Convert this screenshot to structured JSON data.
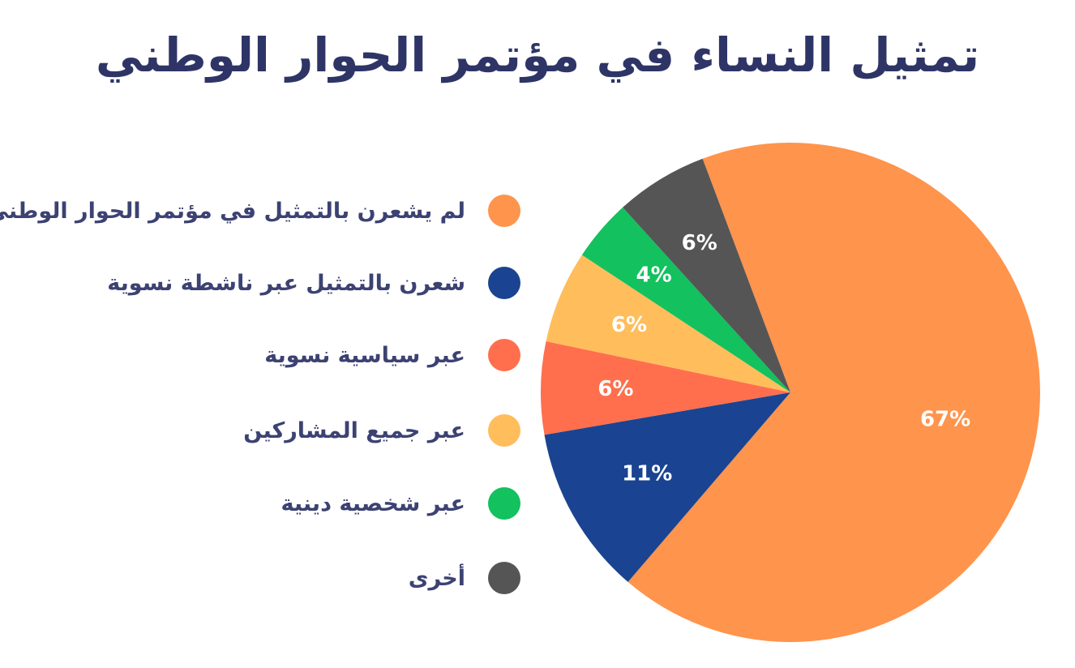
{
  "chart_data": {
    "type": "pie",
    "title": "تمثيل النساء في مؤتمر الحوار الوطني",
    "categories": [
      "لم يشعرن بالتمثيل في مؤتمر الحوار الوطني",
      "شعرن بالتمثيل عبر ناشطة نسوية",
      "عبر سياسية نسوية",
      "عبر جميع المشاركين",
      "عبر شخصية دينية",
      "أخرى"
    ],
    "values": [
      67,
      11,
      6,
      6,
      4,
      6
    ],
    "labels": [
      "67%",
      "11%",
      "6%",
      "6%",
      "4%",
      "6%"
    ],
    "colors": [
      "#ff944d",
      "#1a4491",
      "#ff6f4d",
      "#ffbd5c",
      "#13c15e",
      "#555555"
    ],
    "legend_position": "left"
  }
}
